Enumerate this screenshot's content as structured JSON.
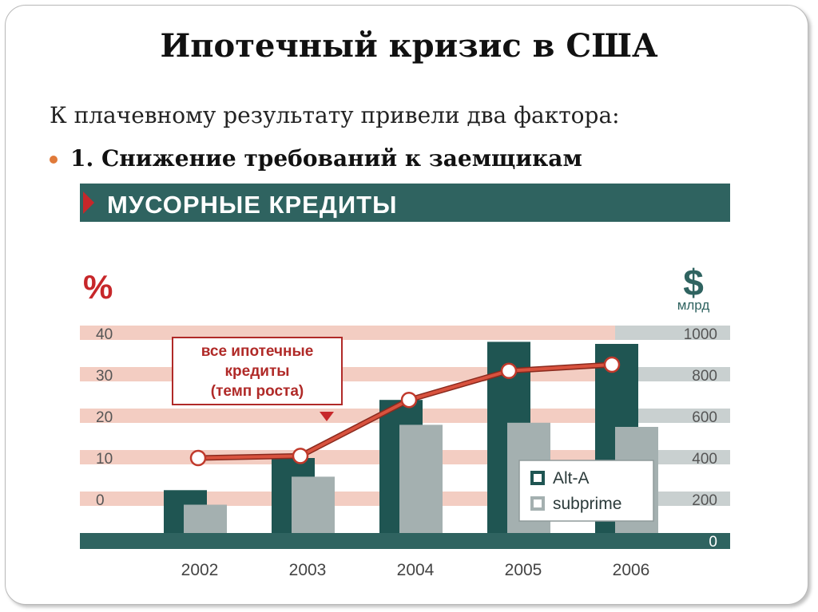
{
  "slide": {
    "title": "Ипотечный кризис в США",
    "subtitle": "К плачевному результату привели два фактора:",
    "bullet": "1. Снижение требований к заемщикам"
  },
  "colors": {
    "banner": "#2f6360",
    "alt_a": "#1f5552",
    "subprime": "#a4b0b0",
    "band_pink": "#f3cdc2",
    "band_gray": "#c9d0d0",
    "line": "#d8523e",
    "accent_red": "#c7272a",
    "callout_border": "#b02a28"
  },
  "chart_data": {
    "type": "bar",
    "title": "МУСОРНЫЕ КРЕДИТЫ",
    "categories": [
      "2002",
      "2003",
      "2004",
      "2005",
      "2006"
    ],
    "y_left": {
      "label": "%",
      "ticks": [
        "40",
        "30",
        "20",
        "10",
        "0"
      ],
      "range": [
        -10,
        40
      ]
    },
    "y_right": {
      "label_symbol": "$",
      "label_unit": "млрд",
      "ticks": [
        "1000",
        "800",
        "600",
        "400",
        "200",
        "0"
      ],
      "range": [
        0,
        1000
      ]
    },
    "series": [
      {
        "name": "Alt-A",
        "axis": "right",
        "values": [
          245,
          400,
          680,
          960,
          950
        ]
      },
      {
        "name": "subprime",
        "axis": "right",
        "values": [
          175,
          310,
          560,
          570,
          550
        ]
      }
    ],
    "line_series": {
      "axis": "left",
      "values": [
        10,
        10.5,
        24,
        31,
        32.5
      ]
    },
    "annotation": [
      "все ипотечные",
      "кредиты",
      "(темп роста)"
    ],
    "legend_position": "bottom-right",
    "grid": true
  }
}
